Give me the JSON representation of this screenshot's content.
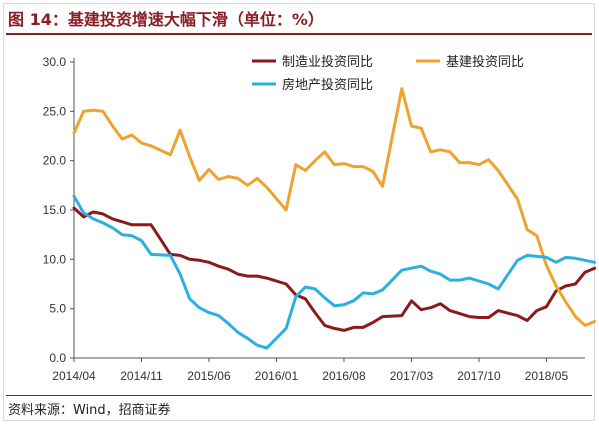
{
  "header": {
    "title": "图 14：基建投资增速大幅下滑（单位：%）"
  },
  "footer": {
    "source": "资料来源：Wind，招商证券"
  },
  "chart_data": {
    "type": "line",
    "title": "",
    "xlabel": "",
    "ylabel": "",
    "ylim": [
      0,
      30
    ],
    "yticks": [
      "0.0",
      "5.0",
      "10.0",
      "15.0",
      "20.0",
      "25.0",
      "30.0"
    ],
    "xlim": [
      "2014/04",
      "2018/09"
    ],
    "xticks": [
      "2014/04",
      "2014/11",
      "2015/06",
      "2016/01",
      "2016/08",
      "2017/03",
      "2017/10",
      "2018/05"
    ],
    "grid": false,
    "legend": "top-right",
    "series": [
      {
        "name": "制造业投资同比",
        "color": "#8b1a1a",
        "points": [
          [
            "2014/04",
            15.2
          ],
          [
            "2014/05",
            14.3
          ],
          [
            "2014/06",
            14.8
          ],
          [
            "2014/07",
            14.6
          ],
          [
            "2014/08",
            14.1
          ],
          [
            "2014/09",
            13.8
          ],
          [
            "2014/10",
            13.5
          ],
          [
            "2014/11",
            13.5
          ],
          [
            "2014/12",
            13.5
          ],
          [
            "2015/02",
            10.5
          ],
          [
            "2015/03",
            10.4
          ],
          [
            "2015/04",
            10.0
          ],
          [
            "2015/05",
            9.9
          ],
          [
            "2015/06",
            9.7
          ],
          [
            "2015/07",
            9.3
          ],
          [
            "2015/08",
            9.0
          ],
          [
            "2015/09",
            8.5
          ],
          [
            "2015/10",
            8.3
          ],
          [
            "2015/11",
            8.3
          ],
          [
            "2015/12",
            8.1
          ],
          [
            "2016/02",
            7.5
          ],
          [
            "2016/03",
            6.4
          ],
          [
            "2016/04",
            6.0
          ],
          [
            "2016/05",
            4.6
          ],
          [
            "2016/06",
            3.3
          ],
          [
            "2016/07",
            3.0
          ],
          [
            "2016/08",
            2.8
          ],
          [
            "2016/09",
            3.1
          ],
          [
            "2016/10",
            3.1
          ],
          [
            "2016/11",
            3.6
          ],
          [
            "2016/12",
            4.2
          ],
          [
            "2017/02",
            4.3
          ],
          [
            "2017/03",
            5.8
          ],
          [
            "2017/04",
            4.9
          ],
          [
            "2017/05",
            5.1
          ],
          [
            "2017/06",
            5.5
          ],
          [
            "2017/07",
            4.8
          ],
          [
            "2017/08",
            4.5
          ],
          [
            "2017/09",
            4.2
          ],
          [
            "2017/10",
            4.1
          ],
          [
            "2017/11",
            4.1
          ],
          [
            "2017/12",
            4.8
          ],
          [
            "2018/02",
            4.3
          ],
          [
            "2018/03",
            3.8
          ],
          [
            "2018/04",
            4.8
          ],
          [
            "2018/05",
            5.2
          ],
          [
            "2018/06",
            6.8
          ],
          [
            "2018/07",
            7.3
          ],
          [
            "2018/08",
            7.5
          ],
          [
            "2018/09",
            8.7
          ],
          [
            "2018/10",
            9.1
          ]
        ]
      },
      {
        "name": "基建投资同比",
        "color": "#f0a22e",
        "points": [
          [
            "2014/04",
            22.8
          ],
          [
            "2014/05",
            25.0
          ],
          [
            "2014/06",
            25.1
          ],
          [
            "2014/07",
            25.0
          ],
          [
            "2014/08",
            23.5
          ],
          [
            "2014/09",
            22.2
          ],
          [
            "2014/10",
            22.6
          ],
          [
            "2014/11",
            21.8
          ],
          [
            "2014/12",
            21.5
          ],
          [
            "2015/02",
            20.6
          ],
          [
            "2015/03",
            23.1
          ],
          [
            "2015/04",
            20.4
          ],
          [
            "2015/05",
            18.0
          ],
          [
            "2015/06",
            19.1
          ],
          [
            "2015/07",
            18.1
          ],
          [
            "2015/08",
            18.4
          ],
          [
            "2015/09",
            18.2
          ],
          [
            "2015/10",
            17.5
          ],
          [
            "2015/11",
            18.2
          ],
          [
            "2015/12",
            17.3
          ],
          [
            "2016/02",
            15.0
          ],
          [
            "2016/03",
            19.6
          ],
          [
            "2016/04",
            19.0
          ],
          [
            "2016/05",
            20.0
          ],
          [
            "2016/06",
            20.9
          ],
          [
            "2016/07",
            19.6
          ],
          [
            "2016/08",
            19.7
          ],
          [
            "2016/09",
            19.4
          ],
          [
            "2016/10",
            19.4
          ],
          [
            "2016/11",
            18.9
          ],
          [
            "2016/12",
            17.4
          ],
          [
            "2017/02",
            27.3
          ],
          [
            "2017/03",
            23.5
          ],
          [
            "2017/04",
            23.3
          ],
          [
            "2017/05",
            20.9
          ],
          [
            "2017/06",
            21.1
          ],
          [
            "2017/07",
            20.9
          ],
          [
            "2017/08",
            19.8
          ],
          [
            "2017/09",
            19.8
          ],
          [
            "2017/10",
            19.6
          ],
          [
            "2017/11",
            20.1
          ],
          [
            "2017/12",
            19.0
          ],
          [
            "2018/02",
            16.1
          ],
          [
            "2018/03",
            13.0
          ],
          [
            "2018/04",
            12.4
          ],
          [
            "2018/05",
            9.4
          ],
          [
            "2018/06",
            7.3
          ],
          [
            "2018/07",
            5.7
          ],
          [
            "2018/08",
            4.2
          ],
          [
            "2018/09",
            3.3
          ],
          [
            "2018/10",
            3.7
          ]
        ]
      },
      {
        "name": "房地产投资同比",
        "color": "#2bb0e0",
        "points": [
          [
            "2014/04",
            16.4
          ],
          [
            "2014/05",
            14.7
          ],
          [
            "2014/06",
            14.1
          ],
          [
            "2014/07",
            13.7
          ],
          [
            "2014/08",
            13.2
          ],
          [
            "2014/09",
            12.5
          ],
          [
            "2014/10",
            12.4
          ],
          [
            "2014/11",
            11.9
          ],
          [
            "2014/12",
            10.5
          ],
          [
            "2015/02",
            10.4
          ],
          [
            "2015/03",
            8.5
          ],
          [
            "2015/04",
            6.0
          ],
          [
            "2015/05",
            5.1
          ],
          [
            "2015/06",
            4.6
          ],
          [
            "2015/07",
            4.3
          ],
          [
            "2015/08",
            3.5
          ],
          [
            "2015/09",
            2.6
          ],
          [
            "2015/10",
            2.0
          ],
          [
            "2015/11",
            1.3
          ],
          [
            "2015/12",
            1.0
          ],
          [
            "2016/02",
            3.0
          ],
          [
            "2016/03",
            6.2
          ],
          [
            "2016/04",
            7.2
          ],
          [
            "2016/05",
            7.0
          ],
          [
            "2016/06",
            6.1
          ],
          [
            "2016/07",
            5.3
          ],
          [
            "2016/08",
            5.4
          ],
          [
            "2016/09",
            5.8
          ],
          [
            "2016/10",
            6.6
          ],
          [
            "2016/11",
            6.5
          ],
          [
            "2016/12",
            6.9
          ],
          [
            "2017/02",
            8.9
          ],
          [
            "2017/03",
            9.1
          ],
          [
            "2017/04",
            9.3
          ],
          [
            "2017/05",
            8.8
          ],
          [
            "2017/06",
            8.5
          ],
          [
            "2017/07",
            7.9
          ],
          [
            "2017/08",
            7.9
          ],
          [
            "2017/09",
            8.1
          ],
          [
            "2017/10",
            7.8
          ],
          [
            "2017/11",
            7.5
          ],
          [
            "2017/12",
            7.0
          ],
          [
            "2018/02",
            9.9
          ],
          [
            "2018/03",
            10.4
          ],
          [
            "2018/04",
            10.3
          ],
          [
            "2018/05",
            10.2
          ],
          [
            "2018/06",
            9.7
          ],
          [
            "2018/07",
            10.2
          ],
          [
            "2018/08",
            10.1
          ],
          [
            "2018/09",
            9.9
          ],
          [
            "2018/10",
            9.7
          ]
        ]
      }
    ]
  }
}
